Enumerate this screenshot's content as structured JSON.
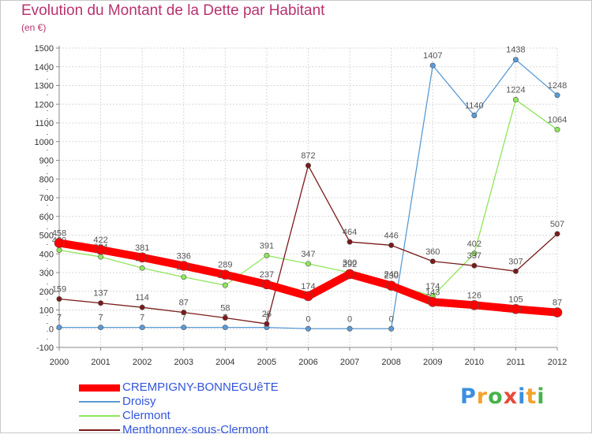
{
  "chart_data": {
    "type": "line",
    "title": "Evolution du Montant de la Dette par Habitant",
    "subtitle": "(en €)",
    "x": [
      "2000",
      "2001",
      "2002",
      "2003",
      "2004",
      "2005",
      "2006",
      "2007",
      "2008",
      "2009",
      "2010",
      "2011",
      "2012"
    ],
    "ylim": [
      -100,
      1500
    ],
    "yticks": [
      -100,
      0,
      100,
      200,
      300,
      400,
      500,
      600,
      700,
      800,
      900,
      1000,
      1100,
      1200,
      1300,
      1400,
      1500
    ],
    "grid": true,
    "legend": "bottom-left",
    "series": [
      {
        "name": "CREMPIGNY-BONNEGUêTE",
        "color": "#ff0000",
        "emphasis": true,
        "values": [
          458,
          422,
          381,
          336,
          289,
          237,
          174,
          292,
          230,
          143,
          126,
          105,
          87
        ]
      },
      {
        "name": "Droisy",
        "color": "#5b9bd5",
        "values": [
          7,
          7,
          7,
          7,
          7,
          7,
          0,
          0,
          0,
          1407,
          1140,
          1438,
          1248
        ]
      },
      {
        "name": "Clermont",
        "color": "#8ee65a",
        "values": [
          420,
          384,
          324,
          276,
          232,
          391,
          347,
          300,
          240,
          174,
          402,
          1224,
          1064
        ]
      },
      {
        "name": "Menthonnex-sous-Clermont",
        "color": "#7a1a1a",
        "values": [
          159,
          137,
          114,
          87,
          58,
          26,
          872,
          464,
          446,
          360,
          337,
          307,
          507
        ]
      }
    ]
  },
  "logo": {
    "text": "Proxiti"
  }
}
